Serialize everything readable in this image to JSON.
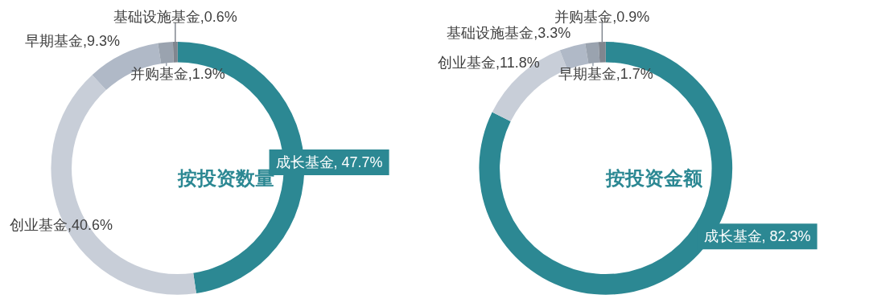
{
  "chart_data": [
    {
      "type": "donut",
      "title": "按投资数量",
      "categories": [
        "成长基金",
        "创业基金",
        "早期基金",
        "并购基金",
        "基础设施基金"
      ],
      "values": [
        47.7,
        40.6,
        9.3,
        1.9,
        0.6
      ],
      "colors": [
        "#2c8893",
        "#c8ced8",
        "#b0b9c7",
        "#9aa3af",
        "#80868f"
      ],
      "value_labels": [
        ", 47.7%",
        ",40.6%",
        ",9.3%",
        ",1.9%",
        ",0.6%"
      ]
    },
    {
      "type": "donut",
      "title": "按投资金额",
      "categories": [
        "成长基金",
        "创业基金",
        "基础设施基金",
        "早期基金",
        "并购基金"
      ],
      "values": [
        82.3,
        11.8,
        3.3,
        1.7,
        0.9
      ],
      "colors": [
        "#2c8893",
        "#c8ced8",
        "#b0b9c7",
        "#9aa3af",
        "#80868f"
      ],
      "value_labels": [
        ", 82.3%",
        ",11.8%",
        ",3.3%",
        ",1.7%",
        ",0.9%"
      ]
    }
  ]
}
